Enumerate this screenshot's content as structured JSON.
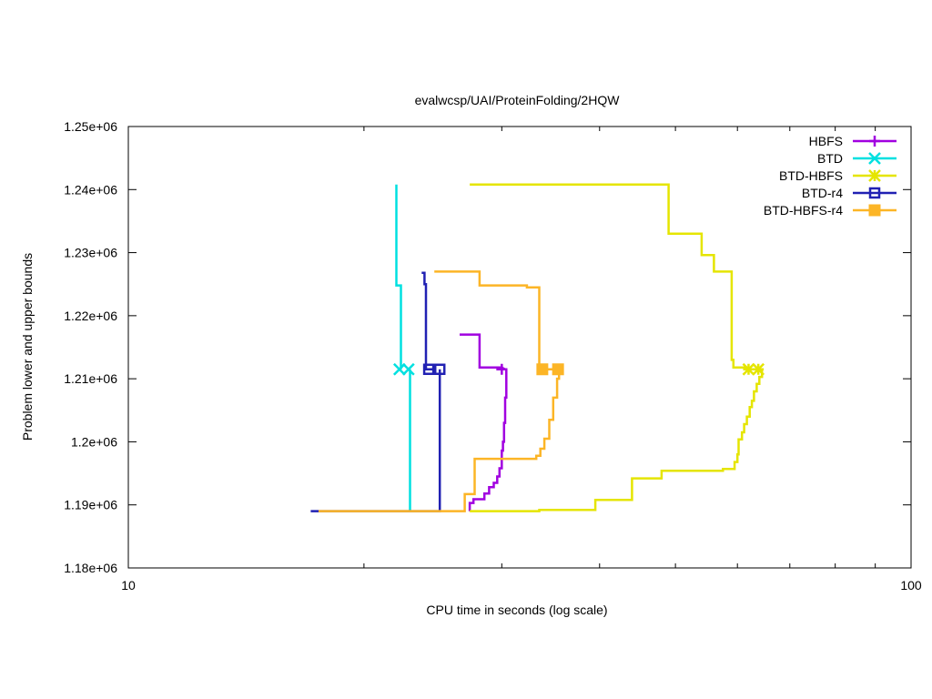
{
  "chart_data": {
    "type": "line",
    "title": "evalwcsp/UAI/ProteinFolding/2HQW",
    "xlabel": "CPU time in seconds (log scale)",
    "ylabel": "Problem lower and upper bounds",
    "xscale": "log",
    "xlim": [
      10,
      100
    ],
    "ylim": [
      1180000,
      1250000
    ],
    "x_ticks": [
      {
        "value": 10,
        "label": "10"
      },
      {
        "value": 100,
        "label": "100"
      }
    ],
    "y_ticks": [
      {
        "value": 1180000,
        "label": "1.18e+06"
      },
      {
        "value": 1190000,
        "label": "1.19e+06"
      },
      {
        "value": 1200000,
        "label": "1.2e+06"
      },
      {
        "value": 1210000,
        "label": "1.21e+06"
      },
      {
        "value": 1220000,
        "label": "1.22e+06"
      },
      {
        "value": 1230000,
        "label": "1.23e+06"
      },
      {
        "value": 1240000,
        "label": "1.24e+06"
      },
      {
        "value": 1250000,
        "label": "1.25e+06"
      }
    ],
    "grid": false,
    "legend_position": "top-right",
    "series": [
      {
        "name": "HBFS",
        "color": "#a100e0",
        "marker": "plus",
        "upper": [
          [
            26.5,
            1217000
          ],
          [
            28.1,
            1217000
          ],
          [
            28.1,
            1211800
          ],
          [
            30.0,
            1211800
          ],
          [
            30.3,
            1211500
          ],
          [
            30.5,
            1211500
          ]
        ],
        "lower": [
          [
            27.3,
            1189000
          ],
          [
            27.3,
            1190300
          ],
          [
            27.6,
            1190300
          ],
          [
            27.6,
            1190900
          ],
          [
            28.5,
            1190900
          ],
          [
            28.5,
            1191800
          ],
          [
            28.9,
            1191800
          ],
          [
            28.9,
            1192800
          ],
          [
            29.3,
            1192800
          ],
          [
            29.3,
            1193500
          ],
          [
            29.6,
            1193500
          ],
          [
            29.6,
            1194500
          ],
          [
            29.8,
            1194500
          ],
          [
            29.8,
            1195800
          ],
          [
            30.0,
            1195800
          ],
          [
            30.0,
            1198600
          ],
          [
            30.1,
            1198600
          ],
          [
            30.1,
            1200000
          ],
          [
            30.2,
            1200000
          ],
          [
            30.2,
            1203000
          ],
          [
            30.3,
            1203000
          ],
          [
            30.3,
            1207000
          ],
          [
            30.4,
            1207000
          ],
          [
            30.4,
            1211500
          ]
        ],
        "markers": [
          [
            30.0,
            1211500
          ]
        ]
      },
      {
        "name": "BTD",
        "color": "#00e0e0",
        "marker": "x",
        "upper": [
          [
            22.0,
            1240800
          ],
          [
            22.0,
            1224800
          ],
          [
            22.3,
            1224800
          ],
          [
            22.3,
            1211500
          ]
        ],
        "lower": [
          [
            22.9,
            1189000
          ],
          [
            22.9,
            1211500
          ]
        ],
        "markers": [
          [
            22.2,
            1211500
          ],
          [
            22.8,
            1211500
          ]
        ]
      },
      {
        "name": "BTD-HBFS",
        "color": "#e5e500",
        "marker": "star",
        "upper": [
          [
            27.3,
            1240800
          ],
          [
            49.0,
            1240800
          ],
          [
            49.0,
            1233000
          ],
          [
            54.0,
            1233000
          ],
          [
            54.0,
            1229600
          ],
          [
            56.0,
            1229600
          ],
          [
            56.0,
            1227000
          ],
          [
            59.0,
            1227000
          ],
          [
            59.0,
            1213000
          ],
          [
            59.3,
            1213000
          ],
          [
            59.3,
            1211800
          ],
          [
            61.5,
            1211800
          ],
          [
            61.5,
            1211500
          ],
          [
            62.5,
            1211500
          ]
        ],
        "lower": [
          [
            27.3,
            1189000
          ],
          [
            33.5,
            1189000
          ],
          [
            33.5,
            1189200
          ],
          [
            39.5,
            1189200
          ],
          [
            39.5,
            1190800
          ],
          [
            44.0,
            1190800
          ],
          [
            44.0,
            1194200
          ],
          [
            48.0,
            1194200
          ],
          [
            48.0,
            1195400
          ],
          [
            57.5,
            1195400
          ],
          [
            57.5,
            1195700
          ],
          [
            59.5,
            1195700
          ],
          [
            59.5,
            1196800
          ],
          [
            60.0,
            1196800
          ],
          [
            60.0,
            1198000
          ],
          [
            60.2,
            1198000
          ],
          [
            60.2,
            1200400
          ],
          [
            60.8,
            1200400
          ],
          [
            60.8,
            1201500
          ],
          [
            61.2,
            1201500
          ],
          [
            61.2,
            1202800
          ],
          [
            61.7,
            1202800
          ],
          [
            61.7,
            1204000
          ],
          [
            62.2,
            1204000
          ],
          [
            62.2,
            1205500
          ],
          [
            62.6,
            1205500
          ],
          [
            62.6,
            1206500
          ],
          [
            63.0,
            1206500
          ],
          [
            63.0,
            1208000
          ],
          [
            63.5,
            1208000
          ],
          [
            63.5,
            1209200
          ],
          [
            64.0,
            1209200
          ],
          [
            64.0,
            1210300
          ],
          [
            64.5,
            1210300
          ],
          [
            64.5,
            1211500
          ]
        ],
        "markers": [
          [
            62.0,
            1211500
          ],
          [
            63.8,
            1211500
          ]
        ]
      },
      {
        "name": "BTD-r4",
        "color": "#2121b3",
        "marker": "square",
        "upper": [
          [
            23.7,
            1226800
          ],
          [
            23.9,
            1226800
          ],
          [
            23.9,
            1225000
          ],
          [
            24.0,
            1225000
          ],
          [
            24.0,
            1211500
          ],
          [
            24.5,
            1211500
          ]
        ],
        "lower": [
          [
            17.1,
            1189000
          ],
          [
            25.0,
            1189000
          ],
          [
            25.0,
            1211500
          ]
        ],
        "markers": [
          [
            24.2,
            1211500
          ],
          [
            25.0,
            1211500
          ]
        ]
      },
      {
        "name": "BTD-HBFS-r4",
        "color": "#fcb526",
        "marker": "filled-square",
        "upper": [
          [
            24.6,
            1227000
          ],
          [
            28.1,
            1227000
          ],
          [
            28.1,
            1224800
          ],
          [
            32.3,
            1224800
          ],
          [
            32.3,
            1224500
          ],
          [
            33.5,
            1224500
          ],
          [
            33.5,
            1211500
          ],
          [
            35.3,
            1211500
          ]
        ],
        "lower": [
          [
            17.5,
            1189000
          ],
          [
            26.9,
            1189000
          ],
          [
            26.9,
            1191700
          ],
          [
            27.7,
            1191700
          ],
          [
            27.7,
            1197300
          ],
          [
            33.2,
            1197300
          ],
          [
            33.2,
            1197800
          ],
          [
            33.6,
            1197800
          ],
          [
            33.6,
            1198900
          ],
          [
            34.0,
            1198900
          ],
          [
            34.0,
            1200500
          ],
          [
            34.5,
            1200500
          ],
          [
            34.5,
            1203500
          ],
          [
            34.9,
            1203500
          ],
          [
            34.9,
            1207000
          ],
          [
            35.3,
            1207000
          ],
          [
            35.3,
            1210000
          ],
          [
            35.5,
            1210000
          ],
          [
            35.5,
            1211500
          ]
        ],
        "markers": [
          [
            33.8,
            1211500
          ],
          [
            35.4,
            1211500
          ]
        ]
      }
    ]
  }
}
